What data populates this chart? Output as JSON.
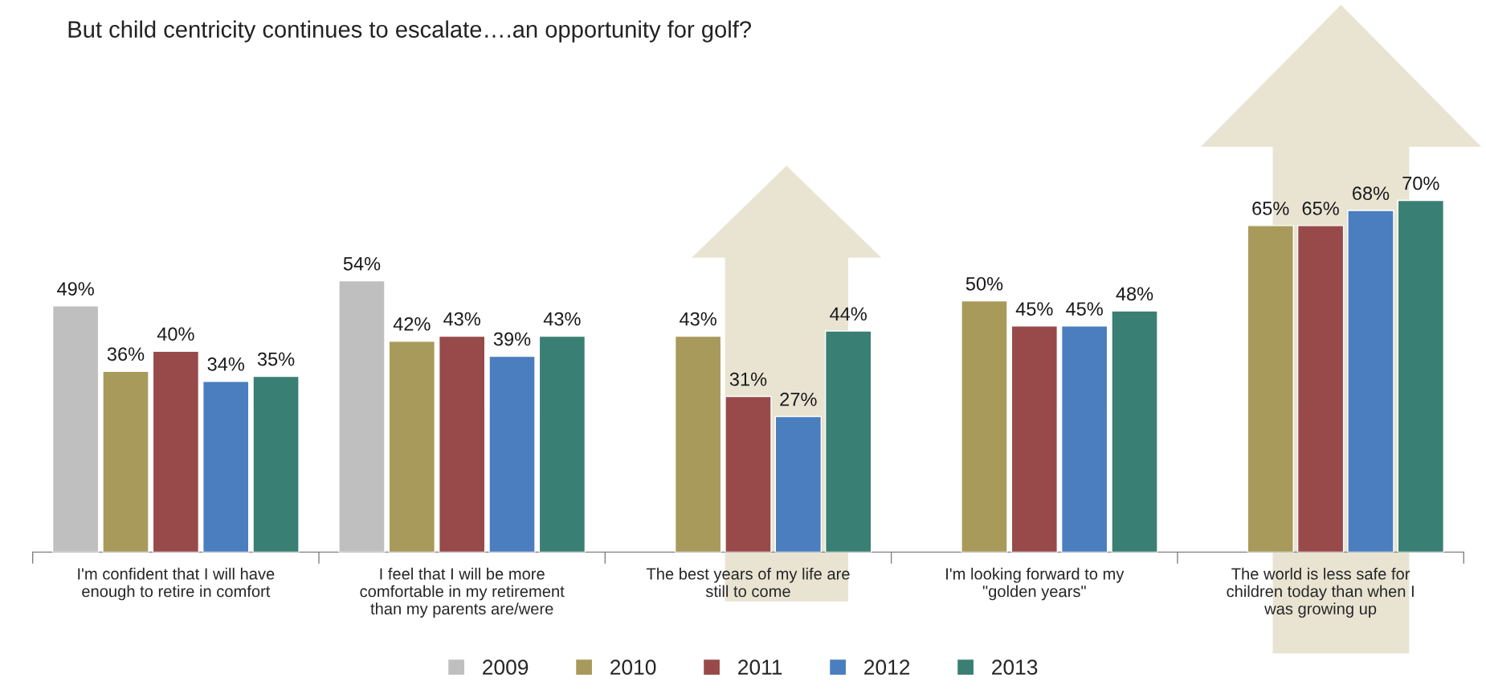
{
  "chart_data": {
    "type": "bar",
    "title": "But child centricity continues to escalate….an opportunity for golf?",
    "categories": [
      "I'm confident that I will have\nenough to retire in comfort",
      "I feel that I will be more\ncomfortable in my retirement\nthan my parents are/were",
      "The best years of my life are\nstill to come",
      "I'm looking forward to my\n\"golden years\"",
      "The world is less safe for\nchildren today than when I\nwas growing up"
    ],
    "series": [
      {
        "name": "2009",
        "color": "#bfbfbf",
        "values": [
          49,
          54,
          null,
          null,
          null
        ],
        "value_labels": [
          "49%",
          "54%",
          null,
          null,
          null
        ]
      },
      {
        "name": "2010",
        "color": "#a89a5b",
        "values": [
          36,
          42,
          43,
          50,
          65
        ],
        "value_labels": [
          "36%",
          "42%",
          "43%",
          "50%",
          "65%"
        ]
      },
      {
        "name": "2011",
        "color": "#984a4a",
        "values": [
          40,
          43,
          31,
          45,
          65
        ],
        "value_labels": [
          "40%",
          "43%",
          "31%",
          "45%",
          "65%"
        ]
      },
      {
        "name": "2012",
        "color": "#4a7ebf",
        "values": [
          34,
          39,
          27,
          45,
          68
        ],
        "value_labels": [
          "34%",
          "39%",
          "27%",
          "45%",
          "68%"
        ]
      },
      {
        "name": "2013",
        "color": "#3a7f73",
        "values": [
          35,
          43,
          44,
          48,
          70
        ],
        "value_labels": [
          "35%",
          "43%",
          "44%",
          "48%",
          "70%"
        ]
      }
    ],
    "legend": "bottom"
  }
}
